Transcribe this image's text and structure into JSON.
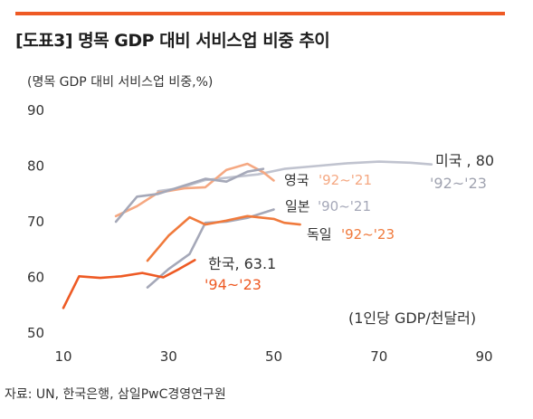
{
  "header": {
    "title": "[도표3] 명목 GDP 대비 서비스업 비중 추이",
    "unit_label": "(명목 GDP  대비 서비스업 비중,%)",
    "source": "자료: UN, 한국은행, 삼일PwC경영연구원"
  },
  "colors": {
    "accent_bar": "#ee5a24",
    "korea": "#ee5a24",
    "germany": "#f07a3c",
    "uk": "#f5a882",
    "japan": "#a5a8b8",
    "usa": "#c0c3cf"
  },
  "chart_data": {
    "type": "line",
    "xlim": [
      10,
      90
    ],
    "ylim": [
      50,
      90
    ],
    "xticks": [
      10,
      30,
      50,
      70,
      90
    ],
    "yticks": [
      50,
      60,
      70,
      80,
      90
    ],
    "xlabel": "(1인당 GDP/천달러)",
    "ylabel": "(명목 GDP  대비 서비스업 비중,%)",
    "series": [
      {
        "key": "usa",
        "name": "미국 , 80",
        "period": "'92~'23",
        "x": [
          28,
          32,
          37,
          42,
          47,
          52,
          58,
          64,
          70,
          76,
          80
        ],
        "y": [
          75.5,
          76.0,
          77.5,
          78.0,
          78.5,
          79.5,
          80.0,
          80.5,
          80.8,
          80.6,
          80.3
        ]
      },
      {
        "key": "uk",
        "name": "영국",
        "period": "'92~'21",
        "x": [
          20,
          24,
          28,
          33,
          37,
          41,
          45,
          48,
          50
        ],
        "y": [
          71.0,
          72.8,
          75.2,
          76.0,
          76.2,
          79.3,
          80.4,
          78.9,
          77.4
        ]
      },
      {
        "key": "japan",
        "name": "일본",
        "period": "'90~'21",
        "x": [
          20,
          24,
          28,
          33,
          37,
          41,
          45,
          48
        ],
        "y": [
          70.0,
          74.5,
          75.0,
          76.5,
          77.7,
          77.2,
          79.0,
          79.5
        ]
      },
      {
        "key": "germany",
        "name": "독일",
        "period": "'92~'23",
        "x": [
          26,
          30,
          34,
          37,
          41,
          45,
          50,
          52,
          55
        ],
        "y": [
          63.0,
          67.5,
          70.8,
          69.5,
          70.2,
          71.0,
          70.5,
          69.8,
          69.5
        ]
      },
      {
        "key": "japan_low",
        "name": "",
        "period": "",
        "x": [
          26,
          30,
          34,
          37,
          41,
          45,
          50
        ],
        "y": [
          58.2,
          61.5,
          64.2,
          69.8,
          70.0,
          70.7,
          72.2
        ]
      },
      {
        "key": "korea",
        "name": "한국, 63.1",
        "period": "'94~'23",
        "x": [
          10,
          13,
          17,
          21,
          25,
          29,
          32,
          35
        ],
        "y": [
          54.5,
          60.2,
          59.9,
          60.2,
          60.8,
          60.0,
          61.5,
          63.1
        ]
      }
    ]
  },
  "labels": {
    "usa_name": "미국 , 80",
    "usa_period": "'92~'23",
    "uk_name": "영국",
    "uk_period": "'92~'21",
    "japan_name": "일본",
    "japan_period": "'90~'21",
    "germany_name": "독일",
    "germany_period": "'92~'23",
    "korea_name": "한국, 63.1",
    "korea_period": "'94~'23"
  }
}
